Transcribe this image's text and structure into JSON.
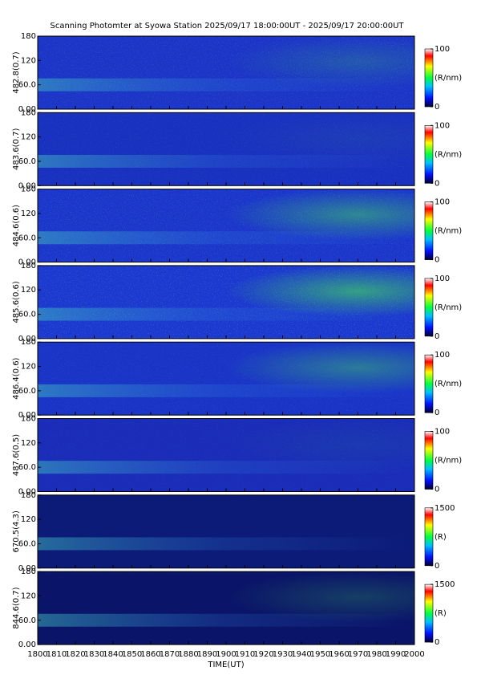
{
  "chart_data": {
    "type": "heatmap",
    "title": "Scanning Photomter at Syowa Station 2025/09/17 18:00:00UT - 2025/09/17 20:00:00UT",
    "xlabel": "TIME(UT)",
    "xlim": [
      1800,
      2000
    ],
    "xticks": [
      1800,
      1810,
      1820,
      1830,
      1840,
      1850,
      1860,
      1870,
      1880,
      1890,
      1900,
      1910,
      1920,
      1930,
      1940,
      1950,
      1960,
      1970,
      1980,
      1990,
      2000
    ],
    "panels": [
      {
        "ylabel": "482.8(0.7)",
        "ylim": [
          0,
          180
        ],
        "yticks": [
          {
            "value": 0,
            "label": "0.00"
          },
          {
            "value": 60,
            "label": "60.0"
          },
          120,
          180
        ],
        "colorbar": {
          "label": "(R/nm)",
          "lim": [
            0,
            100
          ],
          "ticks": [
            0,
            100
          ]
        }
      },
      {
        "ylabel": "483.6(0.7)",
        "ylim": [
          0,
          180
        ],
        "yticks": [
          {
            "value": 0,
            "label": "0.00"
          },
          {
            "value": 60,
            "label": "60.0"
          },
          120,
          180
        ],
        "colorbar": {
          "label": "(R/nm)",
          "lim": [
            0,
            100
          ],
          "ticks": [
            0,
            100
          ]
        }
      },
      {
        "ylabel": "484.6(0.6)",
        "ylim": [
          0,
          180
        ],
        "yticks": [
          {
            "value": 0,
            "label": "0.00"
          },
          {
            "value": 60,
            "label": "60.0"
          },
          120,
          180
        ],
        "colorbar": {
          "label": "(R/nm)",
          "lim": [
            0,
            100
          ],
          "ticks": [
            0,
            100
          ]
        }
      },
      {
        "ylabel": "485.6(0.6)",
        "ylim": [
          0,
          180
        ],
        "yticks": [
          {
            "value": 0,
            "label": "0.00"
          },
          {
            "value": 60,
            "label": "60.0"
          },
          120,
          180
        ],
        "colorbar": {
          "label": "(R/nm)",
          "lim": [
            0,
            100
          ],
          "ticks": [
            0,
            100
          ]
        }
      },
      {
        "ylabel": "486.4(0.6)",
        "ylim": [
          0,
          180
        ],
        "yticks": [
          {
            "value": 0,
            "label": "0.00"
          },
          {
            "value": 60,
            "label": "60.0"
          },
          120,
          180
        ],
        "colorbar": {
          "label": "(R/nm)",
          "lim": [
            0,
            100
          ],
          "ticks": [
            0,
            100
          ]
        }
      },
      {
        "ylabel": "487.6(0.5)",
        "ylim": [
          0,
          180
        ],
        "yticks": [
          {
            "value": 0,
            "label": "0.00"
          },
          {
            "value": 60,
            "label": "60.0"
          },
          120,
          180
        ],
        "colorbar": {
          "label": "(R/nm)",
          "lim": [
            0,
            100
          ],
          "ticks": [
            0,
            100
          ]
        }
      },
      {
        "ylabel": "670.5(4.3)",
        "ylim": [
          0,
          180
        ],
        "yticks": [
          {
            "value": 0,
            "label": "0.00"
          },
          {
            "value": 60,
            "label": "60.0"
          },
          120,
          180
        ],
        "colorbar": {
          "label": "(R)",
          "lim": [
            0,
            1500
          ],
          "ticks": [
            0,
            1500
          ]
        }
      },
      {
        "ylabel": "844.6(0.7)",
        "ylim": [
          0,
          180
        ],
        "yticks": [
          {
            "value": 0,
            "label": "0.00"
          },
          {
            "value": 60,
            "label": "60.0"
          },
          120,
          180
        ],
        "colorbar": {
          "label": "(R)",
          "lim": [
            0,
            1500
          ],
          "ticks": [
            0,
            1500
          ]
        }
      }
    ]
  }
}
